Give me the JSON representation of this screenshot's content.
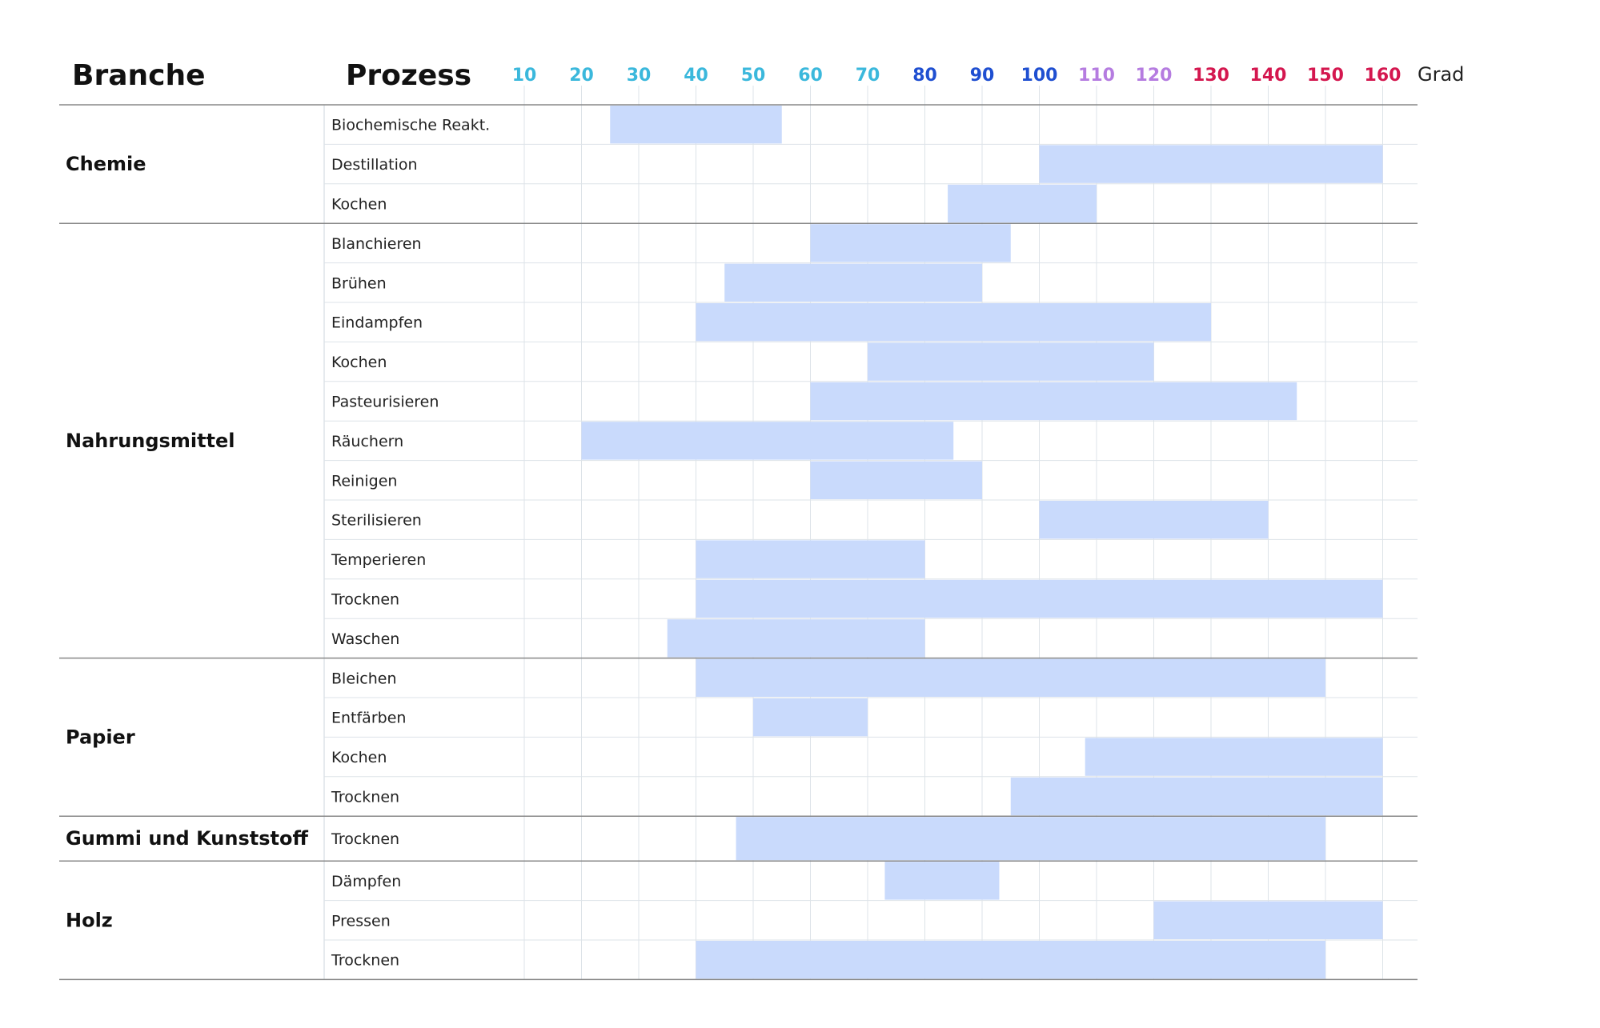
{
  "header": {
    "branch_label": "Branche",
    "process_label": "Prozess",
    "unit_label": "Grad"
  },
  "colors": {
    "bar": "#c9dafc",
    "grid": "#dde3e8",
    "divider": "#888888",
    "tick_colors": [
      "#3bb8dc",
      "#3bb8dc",
      "#3bb8dc",
      "#3bb8dc",
      "#3bb8dc",
      "#3bb8dc",
      "#3bb8dc",
      "#1f4fd1",
      "#1f4fd1",
      "#1f4fd1",
      "#b57ce0",
      "#b57ce0",
      "#d4174f",
      "#d4174f",
      "#d4174f",
      "#d4174f"
    ]
  },
  "chart_data": {
    "type": "bar",
    "orientation": "horizontal-range",
    "x_ticks": [
      10,
      20,
      30,
      40,
      50,
      60,
      70,
      80,
      90,
      100,
      110,
      120,
      130,
      140,
      150,
      160
    ],
    "x_unit": "Grad",
    "xlim": [
      10,
      160
    ],
    "grid": true,
    "groups": [
      {
        "branch": "Chemie",
        "processes": [
          {
            "name": "Biochemische Reakt.",
            "min": 25,
            "max": 55
          },
          {
            "name": "Destillation",
            "min": 100,
            "max": 160
          },
          {
            "name": "Kochen",
            "min": 84,
            "max": 110
          }
        ]
      },
      {
        "branch": "Nahrungsmittel",
        "processes": [
          {
            "name": "Blanchieren",
            "min": 60,
            "max": 95
          },
          {
            "name": "Brühen",
            "min": 45,
            "max": 90
          },
          {
            "name": "Eindampfen",
            "min": 40,
            "max": 130
          },
          {
            "name": "Kochen",
            "min": 70,
            "max": 120
          },
          {
            "name": "Pasteurisieren",
            "min": 60,
            "max": 145
          },
          {
            "name": "Räuchern",
            "min": 20,
            "max": 85
          },
          {
            "name": "Reinigen",
            "min": 60,
            "max": 90
          },
          {
            "name": "Sterilisieren",
            "min": 100,
            "max": 140
          },
          {
            "name": "Temperieren",
            "min": 40,
            "max": 80
          },
          {
            "name": "Trocknen",
            "min": 40,
            "max": 160
          },
          {
            "name": "Waschen",
            "min": 35,
            "max": 80
          }
        ]
      },
      {
        "branch": "Papier",
        "processes": [
          {
            "name": "Bleichen",
            "min": 40,
            "max": 150
          },
          {
            "name": "Entfärben",
            "min": 50,
            "max": 70
          },
          {
            "name": "Kochen",
            "min": 108,
            "max": 160
          },
          {
            "name": "Trocknen",
            "min": 95,
            "max": 160
          }
        ]
      },
      {
        "branch": "Gummi und Kunststoff",
        "processes": [
          {
            "name": "Trocknen",
            "min": 47,
            "max": 150
          }
        ]
      },
      {
        "branch": "Holz",
        "processes": [
          {
            "name": "Dämpfen",
            "min": 73,
            "max": 93
          },
          {
            "name": "Pressen",
            "min": 120,
            "max": 160
          },
          {
            "name": "Trocknen",
            "min": 40,
            "max": 150
          }
        ]
      }
    ]
  }
}
